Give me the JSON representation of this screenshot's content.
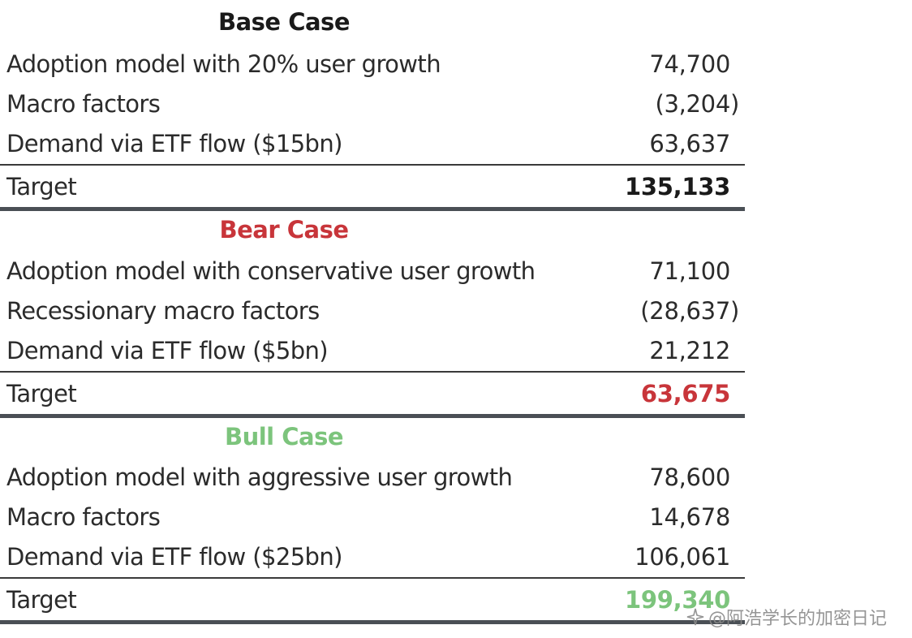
{
  "colors": {
    "base": "#1a1a1a",
    "bear": "#c8353a",
    "bull": "#7cc47c",
    "text": "#2b2b2b"
  },
  "sections": [
    {
      "title": "Base Case",
      "rows": [
        {
          "label": "Adoption model with 20% user growth",
          "value": "74,700"
        },
        {
          "label": "Macro factors",
          "value": "(3,204)"
        },
        {
          "label": "Demand via ETF flow ($15bn)",
          "value": "63,637"
        }
      ],
      "target_label": "Target",
      "target_value": "135,133"
    },
    {
      "title": "Bear Case",
      "rows": [
        {
          "label": "Adoption model with conservative user growth",
          "value": "71,100"
        },
        {
          "label": "Recessionary macro factors",
          "value": "(28,637)"
        },
        {
          "label": "Demand via ETF flow ($5bn)",
          "value": "21,212"
        }
      ],
      "target_label": "Target",
      "target_value": "63,675"
    },
    {
      "title": "Bull Case",
      "rows": [
        {
          "label": "Adoption model with aggressive user growth",
          "value": "78,600"
        },
        {
          "label": "Macro factors",
          "value": "14,678"
        },
        {
          "label": "Demand via ETF flow ($25bn)",
          "value": "106,061"
        }
      ],
      "target_label": "Target",
      "target_value": "199,340"
    }
  ],
  "watermark": {
    "icon": "sparkle-icon",
    "text": "@阿浩学长的加密日记"
  }
}
